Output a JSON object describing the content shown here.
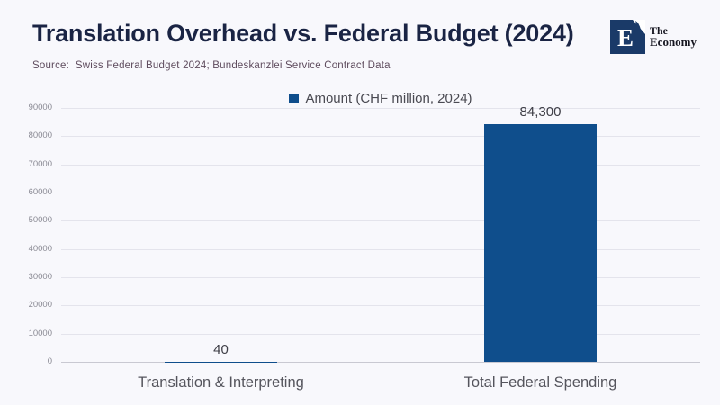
{
  "page": {
    "background": "#f8f8fc"
  },
  "header": {
    "title": "Translation Overhead vs. Federal Budget (2024)",
    "source": "Source:  Swiss Federal Budget 2024; Bundeskanzlei Service Contract Data",
    "logo": {
      "initial": "E",
      "name_line1": "The",
      "name_line2": "Economy",
      "mark_color": "#1a3a68",
      "text_color": "#15151f"
    }
  },
  "chart_data": {
    "type": "bar",
    "title": "Translation Overhead vs. Federal Budget (2024)",
    "xlabel": "",
    "ylabel": "",
    "legend": [
      "Amount (CHF million, 2024)"
    ],
    "legend_position": "top-center",
    "categories": [
      "Translation & Interpreting",
      "Total Federal Spending"
    ],
    "values": [
      40,
      84300
    ],
    "value_labels": [
      "40",
      "84,300"
    ],
    "ylim": [
      0,
      90000
    ],
    "ytick_step": 10000,
    "ytick_labels": [
      "0",
      "10000",
      "20000",
      "30000",
      "40000",
      "50000",
      "60000",
      "70000",
      "80000",
      "90000"
    ],
    "grid": true,
    "bar_color": "#0f4e8c"
  },
  "colors": {
    "background": "#f8f8fc",
    "title": "#1a2444",
    "source": "#5f4c5e",
    "legend_text": "#4a4a52",
    "tick_label": "#8a8a94",
    "category_label": "#55555d",
    "value_label": "#3e3e46",
    "gridline": "#e4e4ec",
    "axis_line": "#c9c9d2",
    "bar": "#0f4e8c",
    "logo_navy": "#1a3a68"
  }
}
